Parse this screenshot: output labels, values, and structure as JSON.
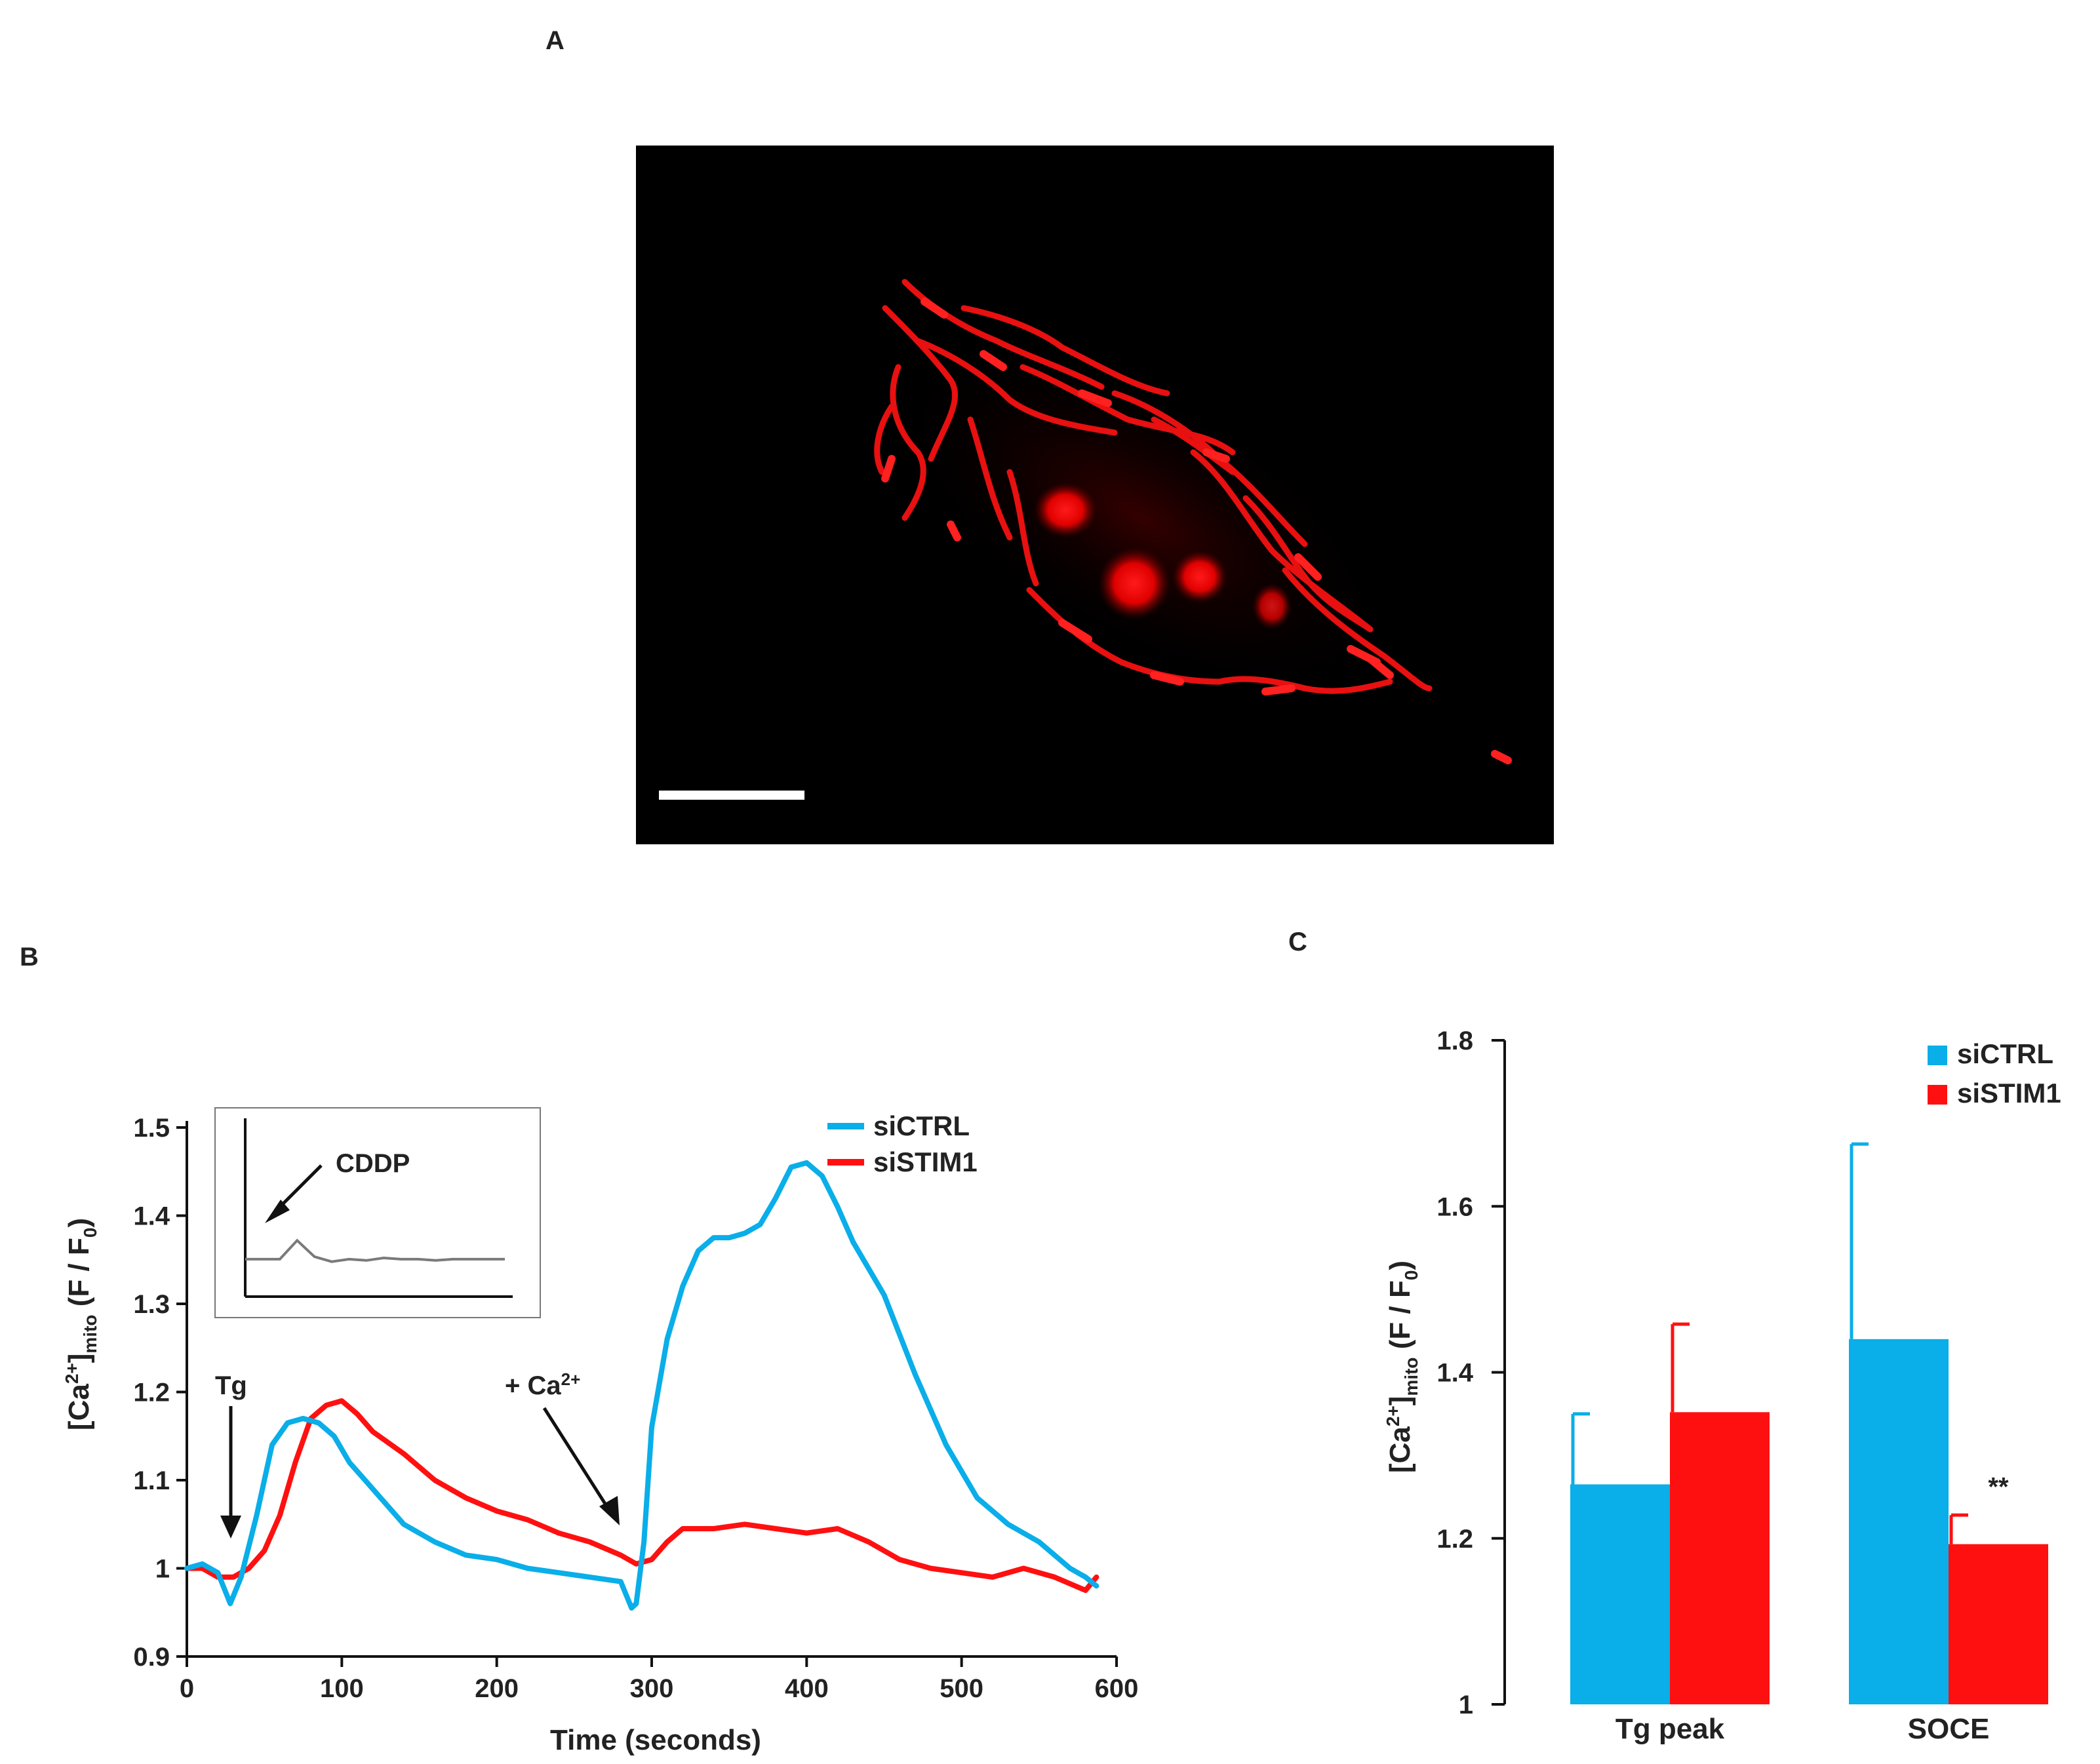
{
  "panels": {
    "a": "A",
    "b": "B",
    "c": "C"
  },
  "colors": {
    "siCTRL": "#0aaee8",
    "siSTIM1": "#ff1010",
    "inset_trace": "#7a7a7a",
    "axis": "#111111"
  },
  "micrograph": {
    "description_icon": "fluorescence-cell-image",
    "scale_bar": "scale-bar"
  },
  "chart_data": [
    {
      "id": "B",
      "type": "line",
      "xlabel": "Time (seconds)",
      "ylabel_parts": {
        "open": "[Ca",
        "sup": "2+",
        "close": "]",
        "sub": "mito",
        "tail": " (F / F",
        "sub0": "0",
        "end": ")"
      },
      "xlim": [
        0,
        600
      ],
      "ylim": [
        0.9,
        1.5
      ],
      "xticks": [
        0,
        100,
        200,
        300,
        400,
        500,
        600
      ],
      "yticks": [
        0.9,
        1,
        1.1,
        1.2,
        1.3,
        1.4,
        1.5
      ],
      "ytick_labels": [
        "0.9",
        "1",
        "1.1",
        "1.2",
        "1.3",
        "1.4",
        "1.5"
      ],
      "legend": [
        "siCTRL",
        "siSTIM1"
      ],
      "annotations": {
        "tg": "Tg",
        "ca_pre": "+ Ca",
        "ca_sup": "2+",
        "inset": "CDDP"
      },
      "series": [
        {
          "name": "siCTRL",
          "x": [
            0,
            10,
            20,
            28,
            35,
            45,
            55,
            65,
            75,
            85,
            95,
            105,
            115,
            125,
            140,
            160,
            180,
            200,
            220,
            240,
            260,
            280,
            287,
            290,
            295,
            300,
            310,
            320,
            330,
            340,
            350,
            360,
            370,
            380,
            390,
            400,
            410,
            420,
            430,
            450,
            470,
            490,
            510,
            530,
            550,
            570,
            580,
            587
          ],
          "y": [
            1.0,
            1.005,
            0.995,
            0.96,
            0.99,
            1.06,
            1.14,
            1.165,
            1.17,
            1.165,
            1.15,
            1.12,
            1.1,
            1.08,
            1.05,
            1.03,
            1.015,
            1.01,
            1.0,
            0.995,
            0.99,
            0.985,
            0.955,
            0.96,
            1.03,
            1.16,
            1.26,
            1.32,
            1.36,
            1.375,
            1.375,
            1.38,
            1.39,
            1.42,
            1.455,
            1.46,
            1.445,
            1.41,
            1.37,
            1.31,
            1.22,
            1.14,
            1.08,
            1.05,
            1.03,
            1.0,
            0.99,
            0.98
          ]
        },
        {
          "name": "siSTIM1",
          "x": [
            0,
            10,
            20,
            30,
            40,
            50,
            60,
            70,
            80,
            90,
            100,
            110,
            120,
            140,
            160,
            180,
            200,
            220,
            240,
            260,
            280,
            290,
            300,
            310,
            320,
            340,
            360,
            380,
            400,
            420,
            440,
            460,
            480,
            500,
            520,
            540,
            560,
            580,
            587
          ],
          "y": [
            1.0,
            1.0,
            0.99,
            0.99,
            1.0,
            1.02,
            1.06,
            1.12,
            1.17,
            1.185,
            1.19,
            1.175,
            1.155,
            1.13,
            1.1,
            1.08,
            1.065,
            1.055,
            1.04,
            1.03,
            1.015,
            1.005,
            1.01,
            1.03,
            1.045,
            1.045,
            1.05,
            1.045,
            1.04,
            1.045,
            1.03,
            1.01,
            1.0,
            0.995,
            0.99,
            1.0,
            0.99,
            0.975,
            0.99
          ]
        }
      ],
      "inset": {
        "series": [
          {
            "name": "CDDP",
            "values": [
              0.3,
              0.3,
              0.3,
              0.45,
              0.32,
              0.28,
              0.3,
              0.29,
              0.31,
              0.3,
              0.3,
              0.29,
              0.3,
              0.3,
              0.3,
              0.3
            ]
          }
        ]
      }
    },
    {
      "id": "C",
      "type": "bar",
      "categories": [
        "Tg peak",
        "SOCE"
      ],
      "ylabel_parts": {
        "open": "[Ca",
        "sup": "2+",
        "close": "]",
        "sub": "mito",
        "tail": " (F / F",
        "sub0": "0",
        "end": ")"
      },
      "ylim": [
        1,
        1.8
      ],
      "yticks": [
        1,
        1.2,
        1.4,
        1.6,
        1.8
      ],
      "ytick_labels": [
        "1",
        "1.2",
        "1.4",
        "1.6",
        "1.8"
      ],
      "legend": [
        "siCTRL",
        "siSTIM1"
      ],
      "series": [
        {
          "name": "siCTRL",
          "values": [
            1.265,
            1.44
          ],
          "errors": [
            0.085,
            0.235
          ]
        },
        {
          "name": "siSTIM1",
          "values": [
            1.352,
            1.193
          ],
          "errors": [
            0.106,
            0.035
          ]
        }
      ],
      "significance": {
        "label": "**",
        "category": "SOCE",
        "series": "siSTIM1"
      }
    }
  ]
}
